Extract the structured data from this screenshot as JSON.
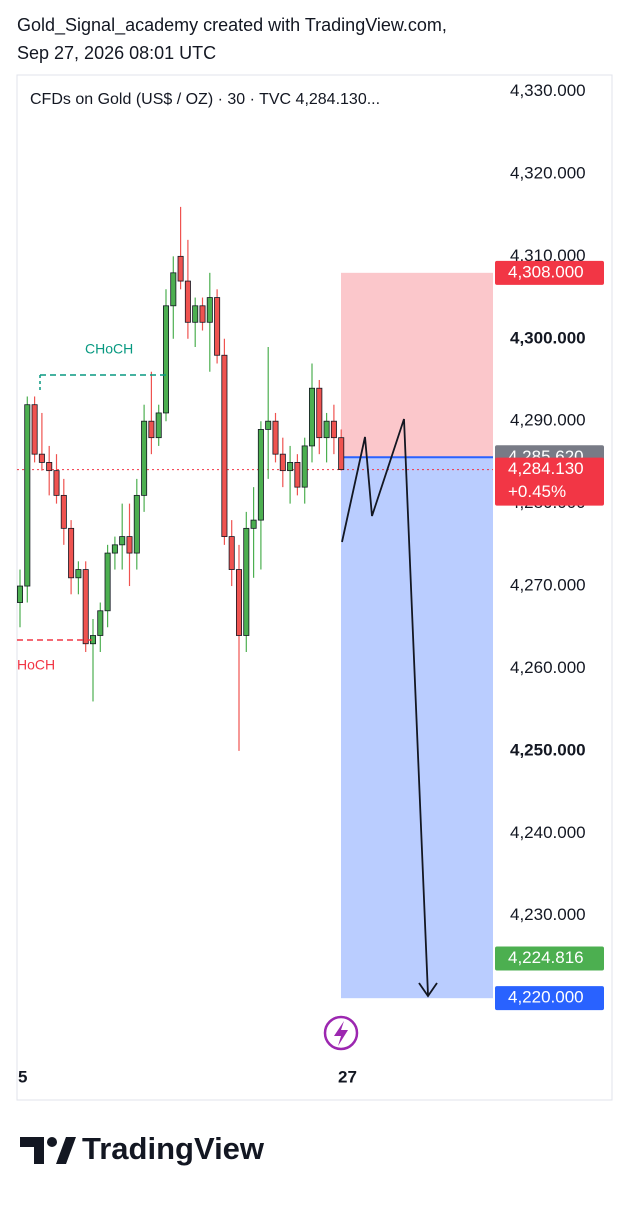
{
  "header": {
    "line1": "Gold_Signal_academy created with TradingView.com,",
    "line2": "Sep 27, 2026 08:01 UTC"
  },
  "chart_data": {
    "type": "candlestick",
    "title": "CFDs on Gold (US$ / OZ) · 30 · TVC  4,284.130...",
    "ylim": [
      4212.5,
      4332
    ],
    "yticks": [
      {
        "value": 4330,
        "label": "4,330.000"
      },
      {
        "value": 4320,
        "label": "4,320.000"
      },
      {
        "value": 4310,
        "label": "4,310.000"
      },
      {
        "value": 4300,
        "label": "4,300.000",
        "bold": true
      },
      {
        "value": 4290,
        "label": "4,290.000"
      },
      {
        "value": 4280,
        "label": "4,280.000"
      },
      {
        "value": 4270,
        "label": "4,270.000"
      },
      {
        "value": 4260,
        "label": "4,260.000"
      },
      {
        "value": 4250,
        "label": "4,250.000",
        "bold": true
      },
      {
        "value": 4240,
        "label": "4,240.000"
      },
      {
        "value": 4230,
        "label": "4,230.000"
      },
      {
        "value": 4220,
        "label": "4,220.000"
      }
    ],
    "xlabels": [
      "5",
      "27"
    ],
    "up_color": "#4caf50",
    "down_color": "#ef5350",
    "open": [
      4268,
      4270,
      4292,
      4286,
      4285,
      4284,
      4281,
      4277,
      4271,
      4272,
      4263,
      4264,
      4267,
      4274,
      4275,
      4276,
      4274,
      4281,
      4290,
      4288,
      4291,
      4304,
      4310,
      4307,
      4302,
      4304,
      4302,
      4305,
      4298,
      4276,
      4272,
      4264,
      4277,
      4278,
      4289,
      4290,
      4286,
      4284,
      4285,
      4282,
      4287,
      4294,
      4288,
      4290,
      4288
    ],
    "high": [
      4272,
      4293,
      4293,
      4291,
      4287,
      4286,
      4283,
      4278,
      4273,
      4273,
      4266,
      4268,
      4275,
      4276,
      4280,
      4280,
      4283,
      4292,
      4296,
      4292,
      4306,
      4310,
      4316,
      4312,
      4305,
      4305,
      4308,
      4306,
      4300,
      4278,
      4275,
      4279,
      4282,
      4290,
      4299,
      4291,
      4288,
      4287,
      4286,
      4288,
      4297,
      4295,
      4291,
      4292,
      4289
    ],
    "low": [
      4265,
      4268,
      4285,
      4284,
      4281,
      4280,
      4275,
      4269,
      4269,
      4262,
      4256,
      4262,
      4265,
      4272,
      4272,
      4270,
      4272,
      4279,
      4286,
      4287,
      4290,
      4300,
      4306,
      4300,
      4299,
      4301,
      4296,
      4297,
      4275,
      4270,
      4250,
      4262,
      4271,
      4272,
      4283,
      4285,
      4282,
      4280,
      4281,
      4280,
      4285,
      4286,
      4285,
      4286,
      4284
    ],
    "close": [
      4270,
      4292,
      4286,
      4285,
      4284,
      4281,
      4277,
      4271,
      4272,
      4263,
      4264,
      4267,
      4274,
      4275,
      4276,
      4274,
      4281,
      4290,
      4288,
      4291,
      4304,
      4308,
      4307,
      4302,
      4304,
      4302,
      4305,
      4298,
      4276,
      4272,
      4264,
      4277,
      4278,
      4289,
      4290,
      4286,
      4284,
      4285,
      4282,
      4287,
      4294,
      4288,
      4290,
      4288,
      4284.13
    ],
    "annotations": [
      "CHoCH",
      "HoCH"
    ],
    "price_tags": [
      {
        "value": 4308,
        "label": "4,308.000",
        "color": "#f23645"
      },
      {
        "value": 4285.62,
        "label": "4,285.620",
        "color": "#787b86"
      },
      {
        "value": 4284.13,
        "label": "4,284.130",
        "color": "#f23645"
      },
      {
        "value": 4224.816,
        "label": "4,224.816",
        "color": "#4caf50"
      },
      {
        "value": 4220,
        "label": "4,220.000",
        "color": "#2962ff"
      }
    ],
    "change": "+0.45%",
    "position": {
      "stop": 4308,
      "entry": 4285.62,
      "target": 4220
    }
  },
  "footer": {
    "brand": "TradingView"
  }
}
